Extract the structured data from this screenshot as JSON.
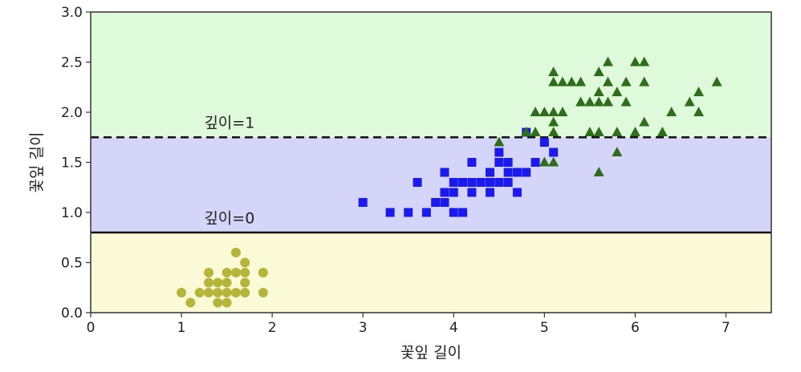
{
  "chart_data": {
    "type": "scatter",
    "xlabel": "꽃잎 길이",
    "ylabel": "꽃잎 길이",
    "xlim": [
      0,
      7.5
    ],
    "ylim": [
      0,
      3.0
    ],
    "x_ticks": [
      "0",
      "1",
      "2",
      "3",
      "4",
      "5",
      "6",
      "7"
    ],
    "y_ticks": [
      "0.0",
      "0.5",
      "1.0",
      "1.5",
      "2.0",
      "2.5",
      "3.0"
    ],
    "grid": false,
    "regions": [
      {
        "y_from": 0.0,
        "y_to": 0.8,
        "color": "#fafad7"
      },
      {
        "y_from": 0.8,
        "y_to": 1.75,
        "color": "#d5d5fa"
      },
      {
        "y_from": 1.75,
        "y_to": 3.0,
        "color": "#dffadb"
      }
    ],
    "boundaries": [
      {
        "y": 0.8,
        "style": "solid",
        "label": "깊이=0",
        "label_x": 1.25,
        "label_y": 0.95
      },
      {
        "y": 1.75,
        "style": "dashed",
        "label": "깊이=1",
        "label_x": 1.25,
        "label_y": 1.9
      }
    ],
    "series": [
      {
        "marker": "circle",
        "color": "#b5b53c",
        "points": [
          [
            1.0,
            0.2
          ],
          [
            1.1,
            0.1
          ],
          [
            1.2,
            0.2
          ],
          [
            1.3,
            0.2
          ],
          [
            1.3,
            0.3
          ],
          [
            1.3,
            0.4
          ],
          [
            1.4,
            0.1
          ],
          [
            1.4,
            0.2
          ],
          [
            1.4,
            0.3
          ],
          [
            1.5,
            0.1
          ],
          [
            1.5,
            0.2
          ],
          [
            1.5,
            0.3
          ],
          [
            1.5,
            0.4
          ],
          [
            1.6,
            0.2
          ],
          [
            1.6,
            0.4
          ],
          [
            1.6,
            0.6
          ],
          [
            1.7,
            0.2
          ],
          [
            1.7,
            0.3
          ],
          [
            1.7,
            0.4
          ],
          [
            1.7,
            0.5
          ],
          [
            1.9,
            0.2
          ],
          [
            1.9,
            0.4
          ]
        ]
      },
      {
        "marker": "square",
        "color": "#1a1aef",
        "points": [
          [
            3.0,
            1.1
          ],
          [
            3.3,
            1.0
          ],
          [
            3.5,
            1.0
          ],
          [
            3.6,
            1.3
          ],
          [
            3.7,
            1.0
          ],
          [
            3.8,
            1.1
          ],
          [
            3.9,
            1.1
          ],
          [
            3.9,
            1.2
          ],
          [
            3.9,
            1.4
          ],
          [
            4.0,
            1.0
          ],
          [
            4.0,
            1.2
          ],
          [
            4.0,
            1.3
          ],
          [
            4.1,
            1.0
          ],
          [
            4.1,
            1.3
          ],
          [
            4.2,
            1.2
          ],
          [
            4.2,
            1.3
          ],
          [
            4.2,
            1.5
          ],
          [
            4.3,
            1.3
          ],
          [
            4.4,
            1.2
          ],
          [
            4.4,
            1.3
          ],
          [
            4.4,
            1.4
          ],
          [
            4.5,
            1.3
          ],
          [
            4.5,
            1.5
          ],
          [
            4.5,
            1.6
          ],
          [
            4.6,
            1.3
          ],
          [
            4.6,
            1.4
          ],
          [
            4.6,
            1.5
          ],
          [
            4.7,
            1.2
          ],
          [
            4.7,
            1.4
          ],
          [
            4.8,
            1.4
          ],
          [
            4.8,
            1.8
          ],
          [
            4.9,
            1.5
          ],
          [
            5.0,
            1.7
          ],
          [
            5.1,
            1.6
          ]
        ]
      },
      {
        "marker": "triangle",
        "color": "#2e6e1a",
        "points": [
          [
            4.5,
            1.7
          ],
          [
            4.8,
            1.8
          ],
          [
            4.9,
            1.8
          ],
          [
            4.9,
            2.0
          ],
          [
            5.0,
            1.5
          ],
          [
            5.0,
            2.0
          ],
          [
            5.1,
            1.5
          ],
          [
            5.1,
            1.8
          ],
          [
            5.1,
            1.9
          ],
          [
            5.1,
            2.0
          ],
          [
            5.1,
            2.3
          ],
          [
            5.1,
            2.4
          ],
          [
            5.2,
            2.0
          ],
          [
            5.2,
            2.3
          ],
          [
            5.3,
            2.3
          ],
          [
            5.4,
            2.1
          ],
          [
            5.4,
            2.3
          ],
          [
            5.5,
            1.8
          ],
          [
            5.5,
            2.1
          ],
          [
            5.6,
            1.4
          ],
          [
            5.6,
            1.8
          ],
          [
            5.6,
            2.1
          ],
          [
            5.6,
            2.2
          ],
          [
            5.6,
            2.4
          ],
          [
            5.7,
            2.1
          ],
          [
            5.7,
            2.3
          ],
          [
            5.7,
            2.5
          ],
          [
            5.8,
            1.6
          ],
          [
            5.8,
            1.8
          ],
          [
            5.8,
            2.2
          ],
          [
            5.9,
            2.1
          ],
          [
            5.9,
            2.3
          ],
          [
            6.0,
            1.8
          ],
          [
            6.0,
            2.5
          ],
          [
            6.1,
            1.9
          ],
          [
            6.1,
            2.3
          ],
          [
            6.1,
            2.5
          ],
          [
            6.3,
            1.8
          ],
          [
            6.4,
            2.0
          ],
          [
            6.6,
            2.1
          ],
          [
            6.7,
            2.0
          ],
          [
            6.7,
            2.2
          ],
          [
            6.9,
            2.3
          ]
        ]
      }
    ]
  }
}
